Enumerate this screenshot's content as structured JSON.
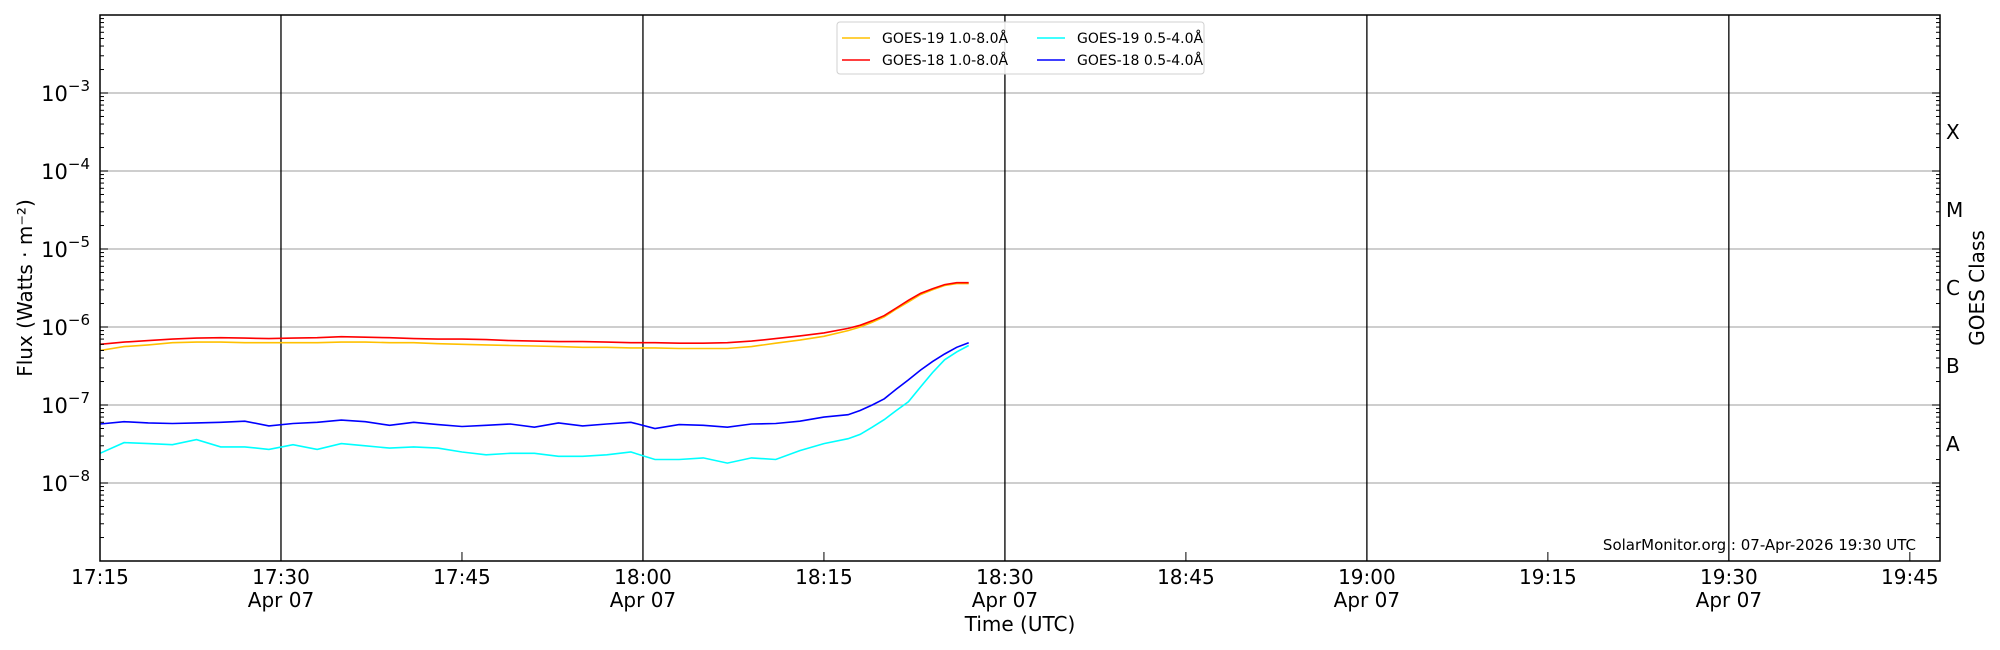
{
  "chart_data": {
    "type": "line",
    "title": "",
    "xlabel": "Time (UTC)",
    "ylabel": "Flux (Watts · m⁻²)",
    "ylabel_right": "GOES Class",
    "yscale": "log",
    "ylim": [
      1e-09,
      0.01
    ],
    "xlim_minutes_after_1715": [
      0,
      152.5
    ],
    "y_ticks": [
      {
        "value": 1e-08,
        "base": "10",
        "exp": "−8"
      },
      {
        "value": 1e-07,
        "base": "10",
        "exp": "−7"
      },
      {
        "value": 1e-06,
        "base": "10",
        "exp": "−6"
      },
      {
        "value": 1e-05,
        "base": "10",
        "exp": "−5"
      },
      {
        "value": 0.0001,
        "base": "10",
        "exp": "−4"
      },
      {
        "value": 0.001,
        "base": "10",
        "exp": "−3"
      }
    ],
    "x_ticks": [
      {
        "minute": 0,
        "time": "17:15",
        "date": ""
      },
      {
        "minute": 15,
        "time": "17:30",
        "date": "Apr 07"
      },
      {
        "minute": 30,
        "time": "17:45",
        "date": ""
      },
      {
        "minute": 45,
        "time": "18:00",
        "date": "Apr 07"
      },
      {
        "minute": 60,
        "time": "18:15",
        "date": ""
      },
      {
        "minute": 75,
        "time": "18:30",
        "date": "Apr 07"
      },
      {
        "minute": 90,
        "time": "18:45",
        "date": ""
      },
      {
        "minute": 105,
        "time": "19:00",
        "date": "Apr 07"
      },
      {
        "minute": 120,
        "time": "19:15",
        "date": ""
      },
      {
        "minute": 135,
        "time": "19:30",
        "date": "Apr 07"
      },
      {
        "minute": 150,
        "time": "19:45",
        "date": ""
      }
    ],
    "goes_classes": [
      {
        "label": "A",
        "value": 3.16e-08
      },
      {
        "label": "B",
        "value": 3.16e-07
      },
      {
        "label": "C",
        "value": 3.16e-06
      },
      {
        "label": "M",
        "value": 3.16e-05
      },
      {
        "label": "X",
        "value": 0.000316
      }
    ],
    "x_minutes": [
      0,
      2,
      4,
      6,
      8,
      10,
      12,
      14,
      16,
      18,
      20,
      22,
      24,
      26,
      28,
      30,
      32,
      34,
      36,
      38,
      40,
      42,
      44,
      46,
      48,
      50,
      52,
      54,
      56,
      58,
      60,
      62,
      63,
      64,
      65,
      66,
      67,
      68,
      69,
      70,
      71,
      72
    ],
    "series": [
      {
        "name": "GOES-19 1.0-8.0Å",
        "color": "#ffc000",
        "values": [
          5e-07,
          5.6e-07,
          5.9e-07,
          6.3e-07,
          6.4e-07,
          6.4e-07,
          6.3e-07,
          6.3e-07,
          6.3e-07,
          6.3e-07,
          6.4e-07,
          6.4e-07,
          6.3e-07,
          6.3e-07,
          6.1e-07,
          6e-07,
          5.9e-07,
          5.8e-07,
          5.7e-07,
          5.6e-07,
          5.5e-07,
          5.5e-07,
          5.4e-07,
          5.4e-07,
          5.3e-07,
          5.3e-07,
          5.3e-07,
          5.6e-07,
          6.2e-07,
          6.8e-07,
          7.6e-07,
          9e-07,
          1e-06,
          1.15e-06,
          1.35e-06,
          1.7e-06,
          2.1e-06,
          2.6e-06,
          3e-06,
          3.4e-06,
          3.6e-06,
          3.6e-06
        ]
      },
      {
        "name": "GOES-18 1.0-8.0Å",
        "color": "#ff0000",
        "values": [
          6e-07,
          6.4e-07,
          6.7e-07,
          7e-07,
          7.2e-07,
          7.3e-07,
          7.2e-07,
          7.1e-07,
          7.2e-07,
          7.3e-07,
          7.5e-07,
          7.4e-07,
          7.3e-07,
          7.1e-07,
          7e-07,
          7e-07,
          6.9e-07,
          6.7e-07,
          6.6e-07,
          6.5e-07,
          6.5e-07,
          6.4e-07,
          6.3e-07,
          6.3e-07,
          6.2e-07,
          6.2e-07,
          6.3e-07,
          6.6e-07,
          7.1e-07,
          7.7e-07,
          8.4e-07,
          9.6e-07,
          1.05e-06,
          1.2e-06,
          1.4e-06,
          1.75e-06,
          2.2e-06,
          2.7e-06,
          3.1e-06,
          3.5e-06,
          3.7e-06,
          3.7e-06
        ]
      },
      {
        "name": "GOES-19 0.5-4.0Å",
        "color": "#00ffff",
        "values": [
          2.4e-08,
          3.3e-08,
          3.2e-08,
          3.1e-08,
          3.6e-08,
          2.9e-08,
          2.9e-08,
          2.7e-08,
          3.1e-08,
          2.7e-08,
          3.2e-08,
          3e-08,
          2.8e-08,
          2.9e-08,
          2.8e-08,
          2.5e-08,
          2.3e-08,
          2.4e-08,
          2.4e-08,
          2.2e-08,
          2.2e-08,
          2.3e-08,
          2.5e-08,
          2e-08,
          2e-08,
          2.1e-08,
          1.8e-08,
          2.1e-08,
          2e-08,
          2.6e-08,
          3.2e-08,
          3.7e-08,
          4.2e-08,
          5.2e-08,
          6.5e-08,
          8.5e-08,
          1.1e-07,
          1.7e-07,
          2.6e-07,
          3.8e-07,
          4.8e-07,
          5.8e-07
        ]
      },
      {
        "name": "GOES-18 0.5-4.0Å",
        "color": "#0000ff",
        "values": [
          5.7e-08,
          6.1e-08,
          5.9e-08,
          5.8e-08,
          5.9e-08,
          6e-08,
          6.2e-08,
          5.4e-08,
          5.8e-08,
          6e-08,
          6.4e-08,
          6.1e-08,
          5.5e-08,
          6e-08,
          5.6e-08,
          5.3e-08,
          5.5e-08,
          5.7e-08,
          5.2e-08,
          5.9e-08,
          5.4e-08,
          5.7e-08,
          6e-08,
          5e-08,
          5.6e-08,
          5.5e-08,
          5.2e-08,
          5.7e-08,
          5.8e-08,
          6.2e-08,
          7e-08,
          7.5e-08,
          8.5e-08,
          1e-07,
          1.2e-07,
          1.6e-07,
          2.1e-07,
          2.8e-07,
          3.6e-07,
          4.5e-07,
          5.5e-07,
          6.3e-07
        ]
      }
    ],
    "legend_placement": "top-center",
    "legend_columns": 2,
    "grid": "horizontal at decades; vertical black lines at half-hours",
    "annotation": "SolarMonitor.org : 07-Apr-2026 19:30 UTC"
  }
}
